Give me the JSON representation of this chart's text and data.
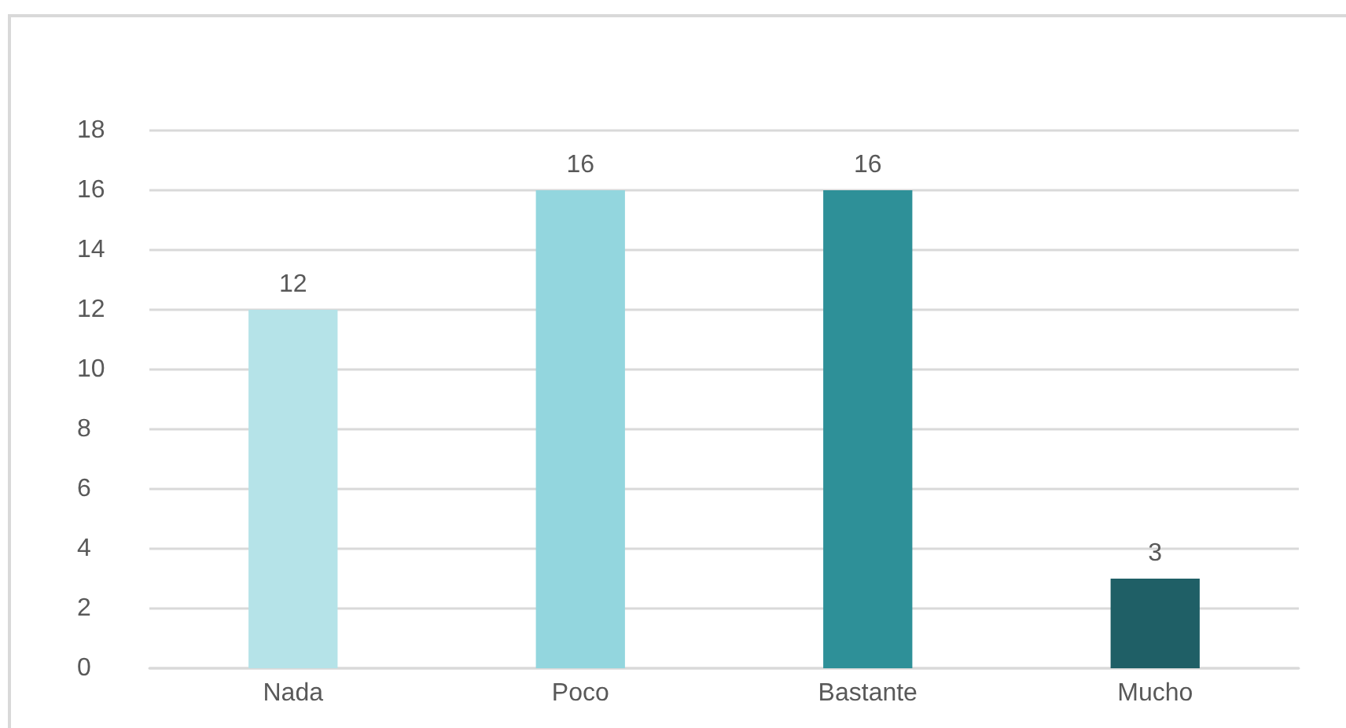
{
  "chart_data": {
    "type": "bar",
    "categories": [
      "Nada",
      "Poco",
      "Bastante",
      "Mucho"
    ],
    "values": [
      12,
      16,
      16,
      3
    ],
    "colors": [
      "#b5e3e8",
      "#93d6de",
      "#2e9098",
      "#1f5f66"
    ],
    "ylim": [
      0,
      18
    ],
    "yticks": [
      0,
      2,
      4,
      6,
      8,
      10,
      12,
      14,
      16,
      18
    ],
    "grid": "y",
    "data_labels": true
  }
}
